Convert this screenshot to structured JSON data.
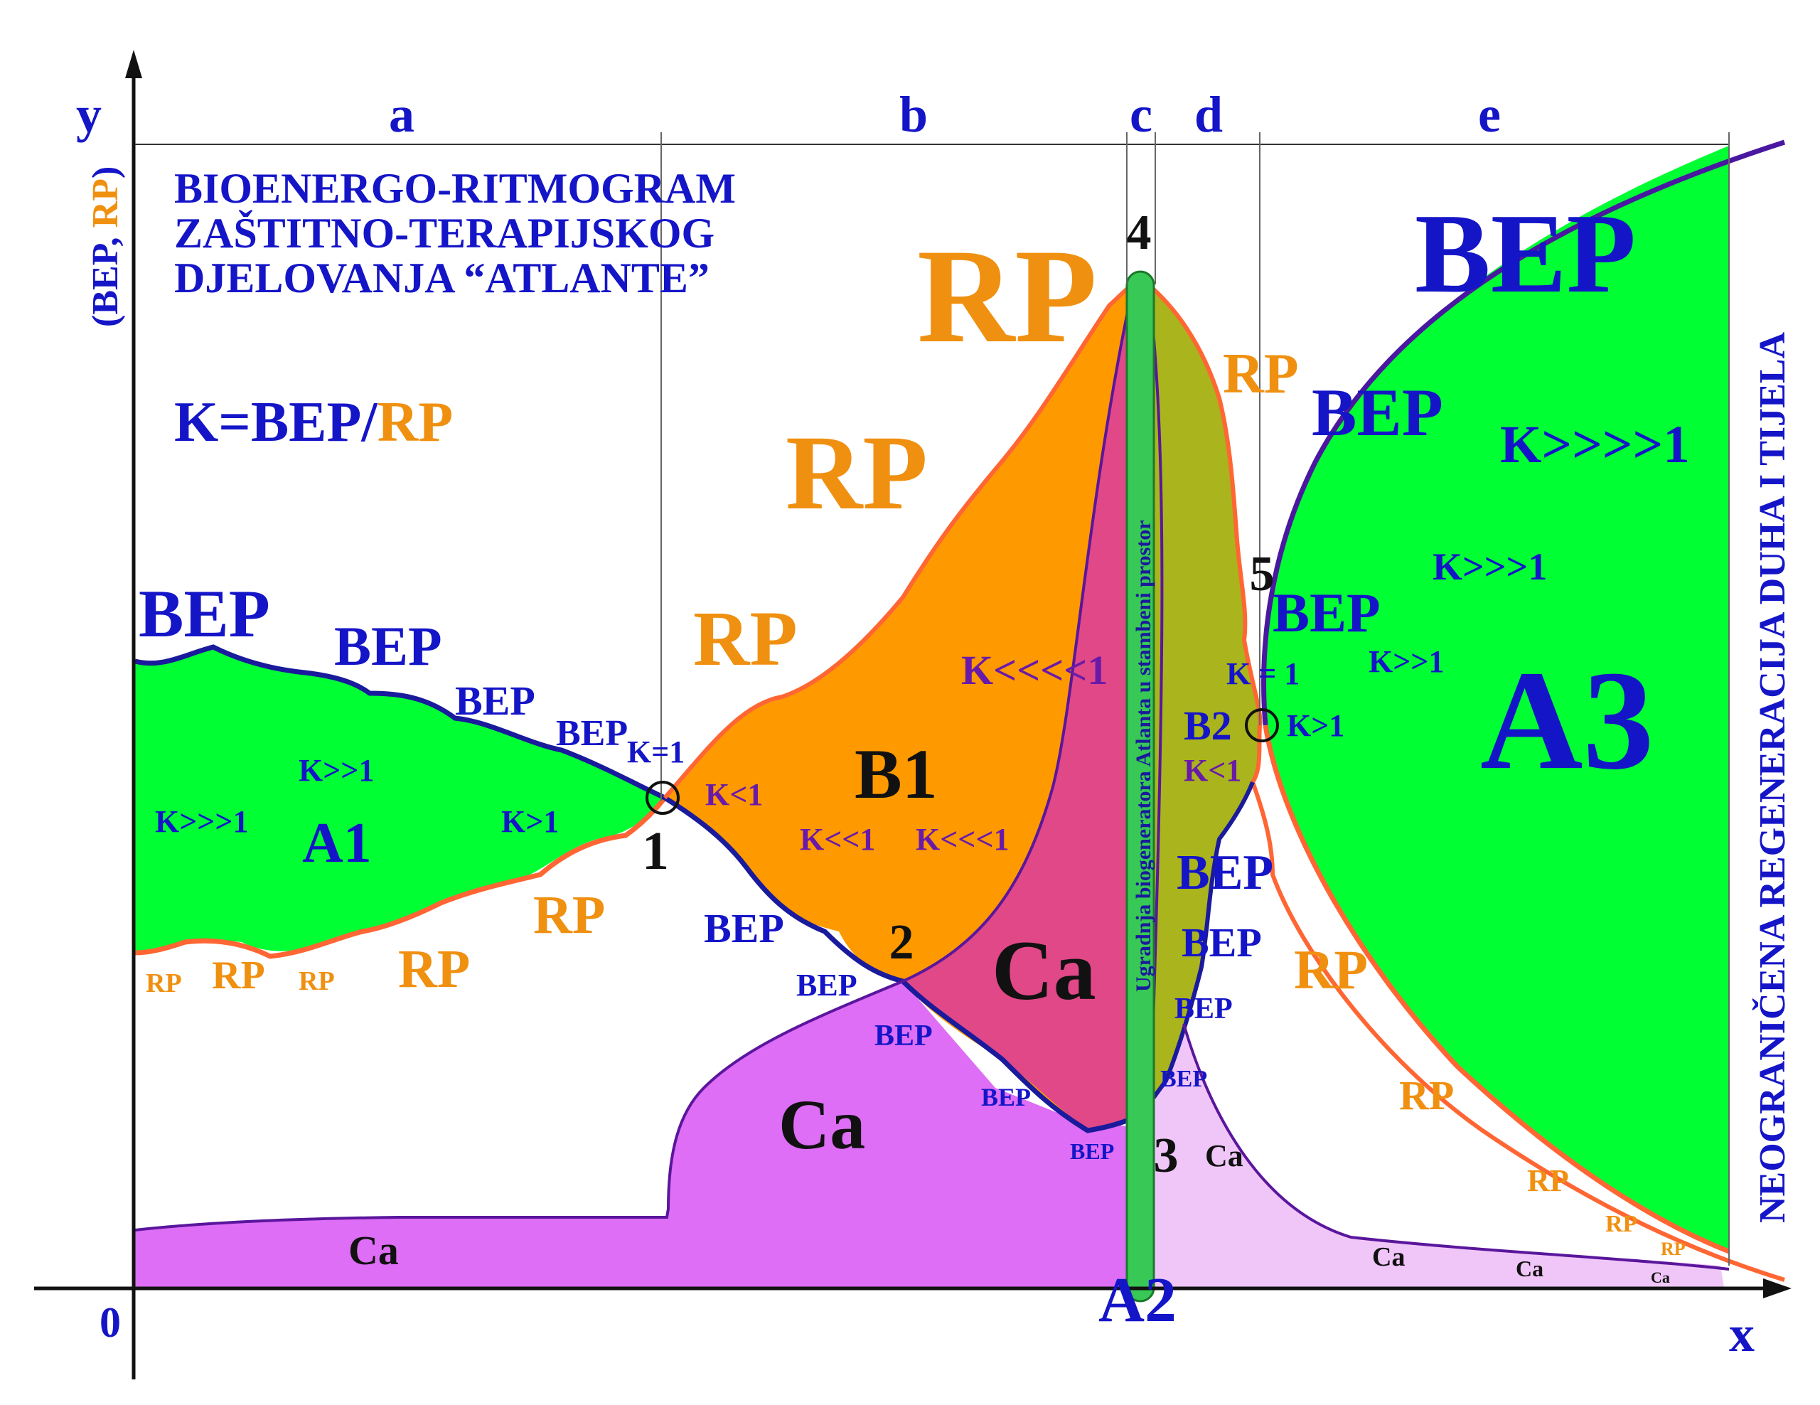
{
  "axes": {
    "y": "y",
    "x": "x",
    "origin": "0",
    "ylabel_part1": "(BEP, ",
    "ylabel_part2": "RP",
    "ylabel_part3": ")"
  },
  "sections": [
    "a",
    "b",
    "c",
    "d",
    "e"
  ],
  "title_lines": [
    "BIOENERGO-RITMOGRAM",
    "ZAŠTITNO-TERAPIJSKOG",
    "DJELOVANJA “ATLANTE”"
  ],
  "formula": {
    "left": "K=BEP/",
    "right": "RP"
  },
  "vertical_right": "NEOGRANIČENA REGENERACIJA DUHA I TIJELA",
  "vertical_bar": "Ugradnja biogeneratora Atlanta u stambeni prostor",
  "points": [
    "1",
    "2",
    "3",
    "4",
    "5"
  ],
  "regions": {
    "a1": "A1",
    "a2": "A2",
    "a3": "A3",
    "b1": "B1",
    "b2": "B2",
    "ca": "Ca"
  },
  "terms": {
    "bep": "BEP",
    "rp": "RP",
    "k_eq1": "K=1",
    "k_eq1_spaced": "K = 1",
    "k_gt1": "K>1",
    "k_gg1": "K>>1",
    "k_ggg1": "K>>>1",
    "k_gggg1": "K>>>>1",
    "k_lt1": "K<1",
    "k_ll1": "K<<1",
    "k_lll1": "K<<<1",
    "k_llll1": "K<<<<1"
  },
  "colors": {
    "green": "#00ff33",
    "orange": "#ff9900",
    "magenta": "#e04888",
    "olive": "#aab41c",
    "violet": "#dd6ef5",
    "light_violet": "#f0c6f8",
    "bar_green": "#38c855",
    "bep_blue": "#1515c8",
    "rp_orange": "#f09010",
    "rp_line": "#ff6633",
    "dark_violet": "#5a169c"
  }
}
